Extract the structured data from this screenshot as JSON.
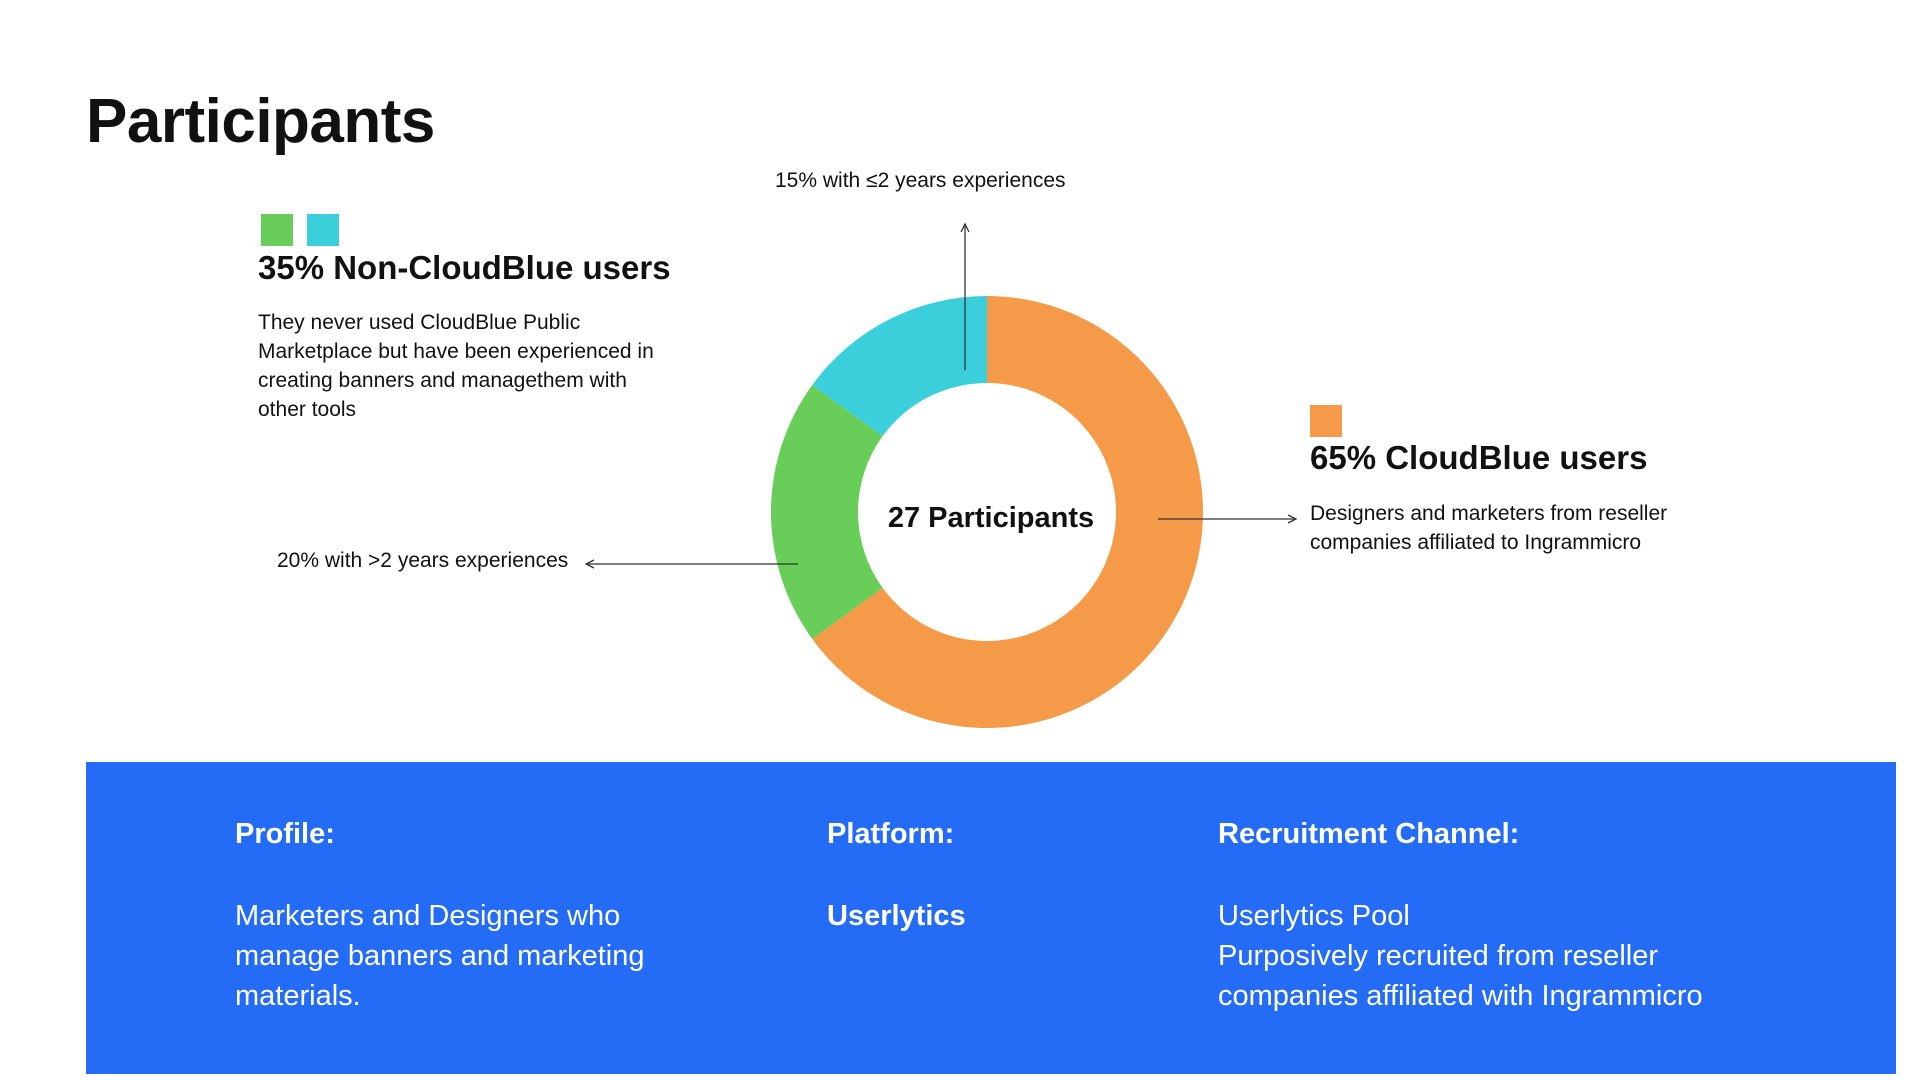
{
  "page": {
    "title": "Participants"
  },
  "groups": {
    "non_cloudblue": {
      "heading": "35% Non-CloudBlue users",
      "description": "They never used CloudBlue Public Marketplace but have been experienced in creating banners and managethem with other tools",
      "swatch_colors": [
        "#69cd5a",
        "#3bcfdb"
      ]
    },
    "cloudblue": {
      "heading": "65% CloudBlue users",
      "description": "Designers and marketers from reseller companies affiliated to Ingrammicro",
      "swatch_colors": [
        "#f49a49"
      ]
    }
  },
  "chart_data": {
    "type": "pie",
    "variant": "donut",
    "center_label": "27 Participants",
    "start_angle_deg": 0,
    "direction": "clockwise",
    "slices": [
      {
        "key": "cloudblue",
        "value": 65,
        "color": "#f49a49",
        "label": ""
      },
      {
        "key": "non_cloudblue_over_2",
        "value": 20,
        "color": "#69cd5a",
        "label": "20% with >2 years experiences"
      },
      {
        "key": "non_cloudblue_upto_2",
        "value": 15,
        "color": "#3bcfdb",
        "label": "15% with ≤2 years experiences"
      }
    ]
  },
  "info": {
    "profile": {
      "heading": "Profile:",
      "lines": [
        "Marketers and Designers who",
        "manage banners and marketing",
        "materials."
      ]
    },
    "platform": {
      "heading": "Platform:",
      "value": "Userlytics"
    },
    "recruitment": {
      "heading": "Recruitment Channel:",
      "lines": [
        "Userlytics Pool",
        "Purposively recruited from reseller",
        "companies affiliated with Ingrammicro"
      ]
    }
  },
  "colors": {
    "info_panel": "#246cf6",
    "text": "#111111"
  }
}
